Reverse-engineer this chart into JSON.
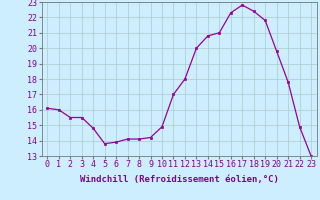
{
  "x": [
    0,
    1,
    2,
    3,
    4,
    5,
    6,
    7,
    8,
    9,
    10,
    11,
    12,
    13,
    14,
    15,
    16,
    17,
    18,
    19,
    20,
    21,
    22,
    23
  ],
  "y": [
    16.1,
    16.0,
    15.5,
    15.5,
    14.8,
    13.8,
    13.9,
    14.1,
    14.1,
    14.2,
    14.9,
    17.0,
    18.0,
    20.0,
    20.8,
    21.0,
    22.3,
    22.8,
    22.4,
    21.8,
    19.8,
    17.8,
    14.9,
    13.0
  ],
  "xlim": [
    -0.5,
    23.5
  ],
  "ylim": [
    13,
    23
  ],
  "yticks": [
    13,
    14,
    15,
    16,
    17,
    18,
    19,
    20,
    21,
    22,
    23
  ],
  "xticks": [
    0,
    1,
    2,
    3,
    4,
    5,
    6,
    7,
    8,
    9,
    10,
    11,
    12,
    13,
    14,
    15,
    16,
    17,
    18,
    19,
    20,
    21,
    22,
    23
  ],
  "line_color": "#990099",
  "marker": "s",
  "marker_size": 1.8,
  "bg_color": "#cceeff",
  "grid_color": "#aacccc",
  "xlabel": "Windchill (Refroidissement éolien,°C)",
  "xlabel_fontsize": 6.5,
  "tick_fontsize": 6,
  "tick_color": "#880088",
  "label_color": "#880088",
  "border_color": "#777777"
}
